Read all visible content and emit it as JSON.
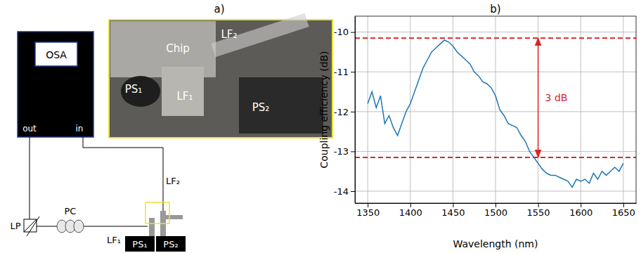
{
  "diagram": {
    "title": "a)",
    "nodes": [
      {
        "label": "OSA"
      },
      {
        "label": "out"
      },
      {
        "label": "in"
      },
      {
        "label": "LP"
      },
      {
        "label": "PC"
      },
      {
        "label": "LF₁"
      },
      {
        "label": "LF₂"
      },
      {
        "label": "PS₁"
      },
      {
        "label": "PS₂"
      }
    ],
    "photo": {
      "labels": [
        "PS₁",
        "Chip",
        "LF₂",
        "LF₁",
        "PS₂"
      ]
    }
  },
  "chart_data": {
    "type": "line",
    "title": "b)",
    "x_label": "Wavelength (nm)",
    "y_label": "Coupling efficiency (dB)",
    "x": [
      1350,
      1355,
      1360,
      1365,
      1370,
      1375,
      1380,
      1385,
      1390,
      1395,
      1400,
      1405,
      1410,
      1415,
      1420,
      1425,
      1430,
      1435,
      1440,
      1445,
      1450,
      1455,
      1460,
      1465,
      1470,
      1475,
      1480,
      1485,
      1490,
      1495,
      1500,
      1505,
      1510,
      1515,
      1520,
      1525,
      1530,
      1535,
      1540,
      1545,
      1550,
      1555,
      1560,
      1565,
      1570,
      1575,
      1580,
      1585,
      1590,
      1595,
      1600,
      1605,
      1610,
      1615,
      1620,
      1625,
      1630,
      1635,
      1640,
      1645,
      1650
    ],
    "series": [
      {
        "color": "#1f77b4",
        "values": [
          -11.8,
          -11.5,
          -11.9,
          -11.6,
          -12.3,
          -12.1,
          -12.4,
          -12.6,
          -12.3,
          -12.0,
          -11.8,
          -11.5,
          -11.2,
          -10.9,
          -10.7,
          -10.5,
          -10.4,
          -10.3,
          -10.2,
          -10.25,
          -10.35,
          -10.5,
          -10.6,
          -10.7,
          -10.8,
          -11.0,
          -11.1,
          -11.25,
          -11.3,
          -11.4,
          -11.6,
          -11.95,
          -12.1,
          -12.3,
          -12.35,
          -12.4,
          -12.6,
          -12.75,
          -13.0,
          -13.15,
          -13.3,
          -13.45,
          -13.55,
          -13.6,
          -13.6,
          -13.65,
          -13.7,
          -13.75,
          -13.9,
          -13.7,
          -13.75,
          -13.7,
          -13.8,
          -13.55,
          -13.7,
          -13.5,
          -13.6,
          -13.5,
          -13.4,
          -13.5,
          -13.3
        ]
      }
    ],
    "xlim": [
      1335,
      1665
    ],
    "xticks": [
      1350,
      1400,
      1450,
      1500,
      1550,
      1600,
      1650
    ],
    "ylim": [
      -14.3,
      -9.6
    ],
    "yticks": [
      -14,
      -13,
      -12,
      -11,
      -10
    ],
    "grid": true,
    "annotations": [
      {
        "type": "hline",
        "y": -10.15,
        "color": "#d62728",
        "line_style": "dashed"
      },
      {
        "type": "hline",
        "y": -13.15,
        "color": "#d62728",
        "line_style": "dashed"
      },
      {
        "type": "arrow",
        "x": 1550,
        "y": [
          -13.15,
          -10.15
        ],
        "text": "3 dB",
        "color": "#d62728"
      }
    ]
  }
}
